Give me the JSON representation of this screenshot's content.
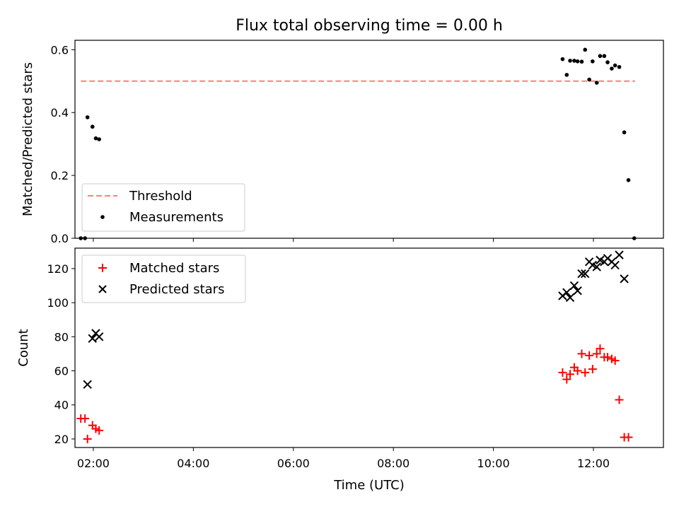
{
  "chart_data": [
    {
      "type": "scatter",
      "title": "Flux total observing time = 0.00 h",
      "xlabel": "",
      "ylabel": "Matched/Predicted stars",
      "xlim": [
        "01:38",
        "13:24"
      ],
      "ylim": [
        0,
        0.63
      ],
      "yticks": [
        0.0,
        0.2,
        0.4,
        0.6
      ],
      "ytick_labels": [
        "0.0",
        "0.2",
        "0.4",
        "0.6"
      ],
      "threshold": {
        "name": "Threshold",
        "value": 0.5,
        "x_start": "01:45",
        "x_end": "12:50",
        "color": "#ff7f7f",
        "style": "dashed"
      },
      "series": [
        {
          "name": "Measurements",
          "marker": "dot",
          "color": "#000000",
          "points": [
            [
              "01:45",
              0.0
            ],
            [
              "01:50",
              0.0
            ],
            [
              "01:53",
              0.385
            ],
            [
              "01:59",
              0.355
            ],
            [
              "02:03",
              0.318
            ],
            [
              "02:07",
              0.315
            ],
            [
              "11:23",
              0.57
            ],
            [
              "11:28",
              0.52
            ],
            [
              "11:32",
              0.565
            ],
            [
              "11:37",
              0.565
            ],
            [
              "11:41",
              0.563
            ],
            [
              "11:46",
              0.562
            ],
            [
              "11:50",
              0.6
            ],
            [
              "11:55",
              0.505
            ],
            [
              "11:59",
              0.563
            ],
            [
              "12:04",
              0.495
            ],
            [
              "12:08",
              0.58
            ],
            [
              "12:13",
              0.58
            ],
            [
              "12:17",
              0.56
            ],
            [
              "12:22",
              0.54
            ],
            [
              "12:26",
              0.55
            ],
            [
              "12:31",
              0.545
            ],
            [
              "12:37",
              0.337
            ],
            [
              "12:42",
              0.185
            ],
            [
              "12:49",
              0.0
            ]
          ]
        }
      ],
      "legend": {
        "placement": "lower-left",
        "entries": [
          "Threshold",
          "Measurements"
        ]
      }
    },
    {
      "type": "scatter",
      "title": "",
      "xlabel": "Time (UTC)",
      "ylabel": "Count",
      "xlim": [
        "01:38",
        "13:24"
      ],
      "xticks": [
        "02:00",
        "04:00",
        "06:00",
        "08:00",
        "10:00",
        "12:00"
      ],
      "ylim": [
        15,
        132
      ],
      "yticks": [
        20,
        40,
        60,
        80,
        100,
        120
      ],
      "ytick_labels": [
        "20",
        "40",
        "60",
        "80",
        "100",
        "120"
      ],
      "series": [
        {
          "name": "Matched stars",
          "marker": "plus",
          "color": "#ff0000",
          "points": [
            [
              "01:45",
              32
            ],
            [
              "01:50",
              32
            ],
            [
              "01:53",
              20
            ],
            [
              "01:59",
              28
            ],
            [
              "02:03",
              26
            ],
            [
              "02:07",
              25
            ],
            [
              "11:23",
              59
            ],
            [
              "11:28",
              55
            ],
            [
              "11:32",
              58
            ],
            [
              "11:37",
              62
            ],
            [
              "11:41",
              60
            ],
            [
              "11:46",
              70
            ],
            [
              "11:50",
              59
            ],
            [
              "11:55",
              69
            ],
            [
              "11:59",
              61
            ],
            [
              "12:04",
              70
            ],
            [
              "12:08",
              73
            ],
            [
              "12:13",
              68
            ],
            [
              "12:17",
              68
            ],
            [
              "12:22",
              67
            ],
            [
              "12:26",
              66
            ],
            [
              "12:31",
              43
            ],
            [
              "12:37",
              21
            ],
            [
              "12:42",
              21
            ]
          ]
        },
        {
          "name": "Predicted stars",
          "marker": "x",
          "color": "#000000",
          "points": [
            [
              "01:53",
              52
            ],
            [
              "01:59",
              79
            ],
            [
              "02:03",
              82
            ],
            [
              "02:07",
              80
            ],
            [
              "11:23",
              104
            ],
            [
              "11:28",
              106
            ],
            [
              "11:32",
              103
            ],
            [
              "11:37",
              110
            ],
            [
              "11:41",
              107
            ],
            [
              "11:46",
              117
            ],
            [
              "11:50",
              117
            ],
            [
              "11:55",
              124
            ],
            [
              "11:59",
              122
            ],
            [
              "12:04",
              121
            ],
            [
              "12:08",
              125
            ],
            [
              "12:13",
              124
            ],
            [
              "12:17",
              126
            ],
            [
              "12:22",
              124
            ],
            [
              "12:26",
              122
            ],
            [
              "12:31",
              128
            ],
            [
              "12:37",
              114
            ]
          ]
        }
      ],
      "legend": {
        "placement": "upper-left",
        "entries": [
          "Matched stars",
          "Predicted stars"
        ]
      }
    }
  ]
}
